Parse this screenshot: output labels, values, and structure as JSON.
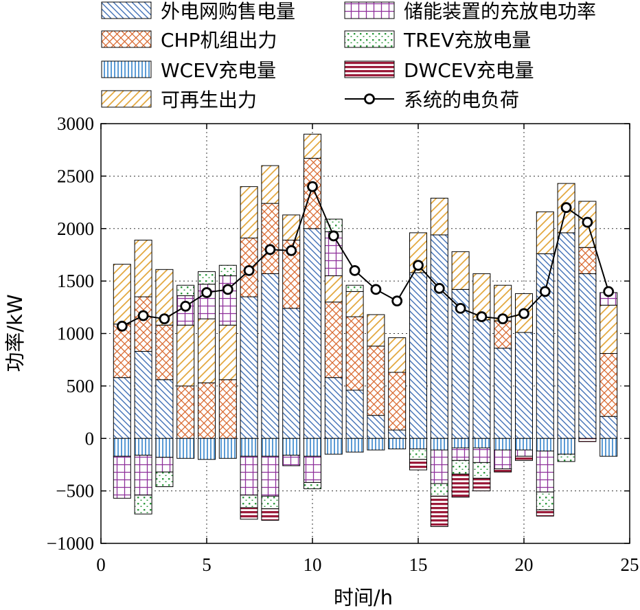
{
  "chart_data": {
    "type": "bar",
    "stacked": true,
    "xlabel": "时间/h",
    "ylabel": "功率/kW",
    "xlim": [
      0,
      25
    ],
    "ylim": [
      -1000,
      3000
    ],
    "xticks": [
      "0",
      "5",
      "10",
      "15",
      "20",
      "25"
    ],
    "yticks": [
      "3000",
      "2500",
      "2000",
      "1500",
      "1000",
      "500",
      "0",
      "−500",
      "−1000"
    ],
    "grid": true,
    "legend_position": "top",
    "x": [
      1,
      2,
      3,
      4,
      5,
      6,
      7,
      8,
      9,
      10,
      11,
      12,
      13,
      14,
      15,
      16,
      17,
      18,
      19,
      20,
      21,
      22,
      23,
      24
    ],
    "series": [
      {
        "key": "grid",
        "name": "外电网购售电量",
        "pattern": "pat-grid",
        "values": [
          580,
          830,
          560,
          0,
          0,
          0,
          1350,
          1570,
          1240,
          2000,
          580,
          460,
          220,
          80,
          1580,
          1940,
          1420,
          1130,
          860,
          1010,
          1760,
          1960,
          1570,
          210
        ]
      },
      {
        "key": "chp",
        "name": "CHP机组出力",
        "pattern": "pat-chp",
        "values": [
          510,
          520,
          520,
          500,
          530,
          560,
          560,
          670,
          650,
          670,
          720,
          700,
          660,
          550,
          0,
          0,
          0,
          0,
          260,
          0,
          0,
          0,
          250,
          600
        ]
      },
      {
        "key": "wcev",
        "name": "WCEV充电量",
        "pattern": "pat-wcev",
        "values": [
          -170,
          -160,
          -180,
          -190,
          -200,
          -190,
          -170,
          -170,
          -160,
          -170,
          -150,
          -130,
          -110,
          -100,
          -100,
          -110,
          -90,
          -90,
          -110,
          -110,
          -120,
          -150,
          0,
          -170
        ]
      },
      {
        "key": "renew",
        "name": "可再生出力",
        "pattern": "pat-renew",
        "values": [
          570,
          540,
          530,
          580,
          610,
          520,
          490,
          360,
          240,
          230,
          250,
          240,
          300,
          330,
          380,
          350,
          360,
          440,
          340,
          370,
          400,
          470,
          440,
          460
        ]
      },
      {
        "key": "storage",
        "name": "储能装置的充放电功率",
        "pattern": "pat-storage",
        "values": [
          -400,
          -380,
          -140,
          280,
          330,
          470,
          -370,
          -380,
          -100,
          -250,
          420,
          0,
          0,
          0,
          0,
          -320,
          -120,
          -140,
          -180,
          -60,
          -390,
          0,
          0,
          120
        ]
      },
      {
        "key": "trev",
        "name": "TREV充放电量",
        "pattern": "pat-trev",
        "values": [
          0,
          -180,
          -140,
          100,
          120,
          100,
          -120,
          -120,
          0,
          -60,
          120,
          60,
          0,
          0,
          -100,
          -120,
          -130,
          -150,
          0,
          0,
          -170,
          -70,
          0,
          0
        ]
      },
      {
        "key": "dwcev",
        "name": "DWCEV充电量",
        "pattern": "pat-dwcev",
        "values": [
          0,
          0,
          0,
          0,
          0,
          0,
          -110,
          -110,
          0,
          0,
          0,
          0,
          0,
          0,
          -100,
          -290,
          -220,
          -120,
          -30,
          -40,
          -60,
          0,
          -30,
          0
        ]
      }
    ],
    "line": {
      "key": "load",
      "name": "系统的电负荷",
      "values": [
        1070,
        1170,
        1140,
        1260,
        1390,
        1420,
        1600,
        1800,
        1790,
        2400,
        1930,
        1600,
        1420,
        1310,
        1650,
        1430,
        1240,
        1160,
        1140,
        1190,
        1400,
        2200,
        2060,
        1400
      ]
    }
  }
}
